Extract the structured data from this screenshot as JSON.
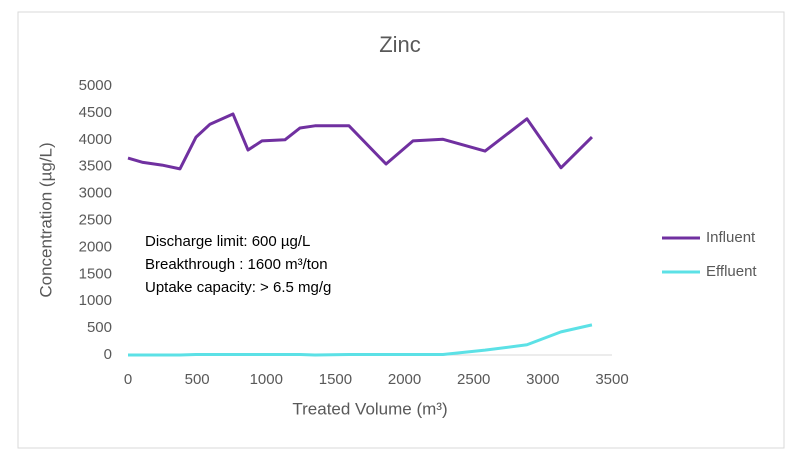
{
  "chart_data": {
    "type": "line",
    "title": "Zinc",
    "x_label": "Treated Volume (m³)",
    "y_label": "Concentration (µg/L)",
    "x": [
      0,
      108,
      246,
      376,
      492,
      593,
      759,
      868,
      969,
      1135,
      1244,
      1352,
      1598,
      1866,
      2061,
      2278,
      2582,
      2885,
      3131,
      3355
    ],
    "series": [
      {
        "name": "Influent",
        "color": "#7030a0",
        "values": [
          3660,
          3580,
          3530,
          3460,
          4050,
          4290,
          4480,
          3810,
          3980,
          4000,
          4220,
          4260,
          4260,
          3550,
          3980,
          4010,
          3790,
          4390,
          3480,
          4050
        ]
      },
      {
        "name": "Effluent",
        "color": "#5ce1e6",
        "values": [
          0,
          0,
          0,
          0,
          10,
          10,
          10,
          10,
          10,
          10,
          10,
          0,
          10,
          10,
          10,
          10,
          90,
          190,
          430,
          560
        ]
      }
    ],
    "xlim": [
      0,
      3500
    ],
    "xticks": [
      0,
      500,
      1000,
      1500,
      2000,
      2500,
      3000,
      3500
    ],
    "ylim": [
      0,
      5000
    ],
    "yticks": [
      0,
      500,
      1000,
      1500,
      2000,
      2500,
      3000,
      3500,
      4000,
      4500,
      5000
    ],
    "annotations": [
      "Discharge limit: 600 µg/L",
      "Breakthrough : 1600 m³/ton",
      "Uptake capacity: > 6.5 mg/g"
    ],
    "legend": "right"
  }
}
